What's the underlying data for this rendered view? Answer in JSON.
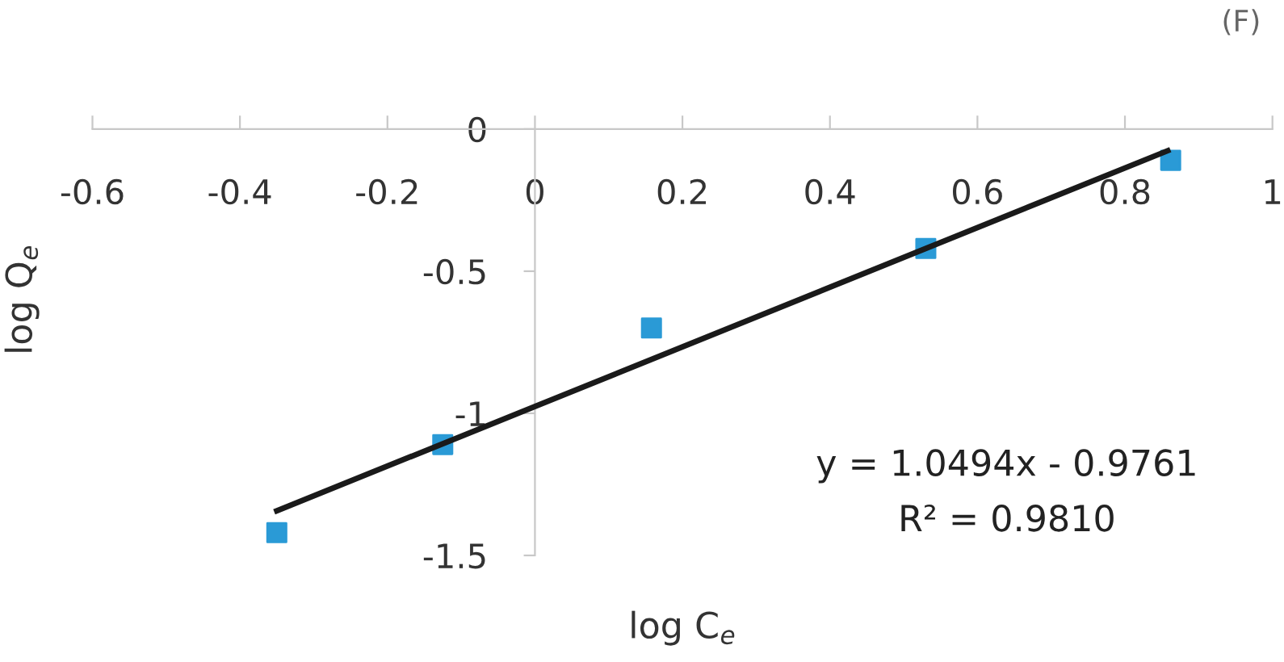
{
  "chart_data": {
    "type": "scatter",
    "xlabel": "log C$_{e}$",
    "ylabel": "log Q$_{e}$",
    "annotations": [
      "(F)",
      "y = 1.0494x - 0.9761",
      "R² = 0.9810"
    ],
    "xlim": [
      -0.6,
      1
    ],
    "xticks": [
      -0.6,
      -0.4,
      -0.2,
      0,
      0.2,
      0.4,
      0.6,
      0.8,
      1
    ],
    "ylim": [
      -1.5,
      0
    ],
    "yticks": [
      -1.5,
      -1,
      -0.5,
      0
    ],
    "grid": false,
    "legend": false,
    "series": [
      {
        "color": "#2a9ad6",
        "marker": "square",
        "x": [
          -0.35,
          -0.125,
          0.158,
          0.53,
          0.862
        ],
        "values": [
          -1.42,
          -1.11,
          -0.7,
          -0.42,
          -0.11
        ]
      },
      {
        "type": "line",
        "color": "#1a1a1a",
        "marker": "none",
        "line_style": "solid",
        "x": [
          -0.35,
          0.858
        ],
        "values": [
          -1.343,
          -0.076
        ]
      }
    ]
  }
}
